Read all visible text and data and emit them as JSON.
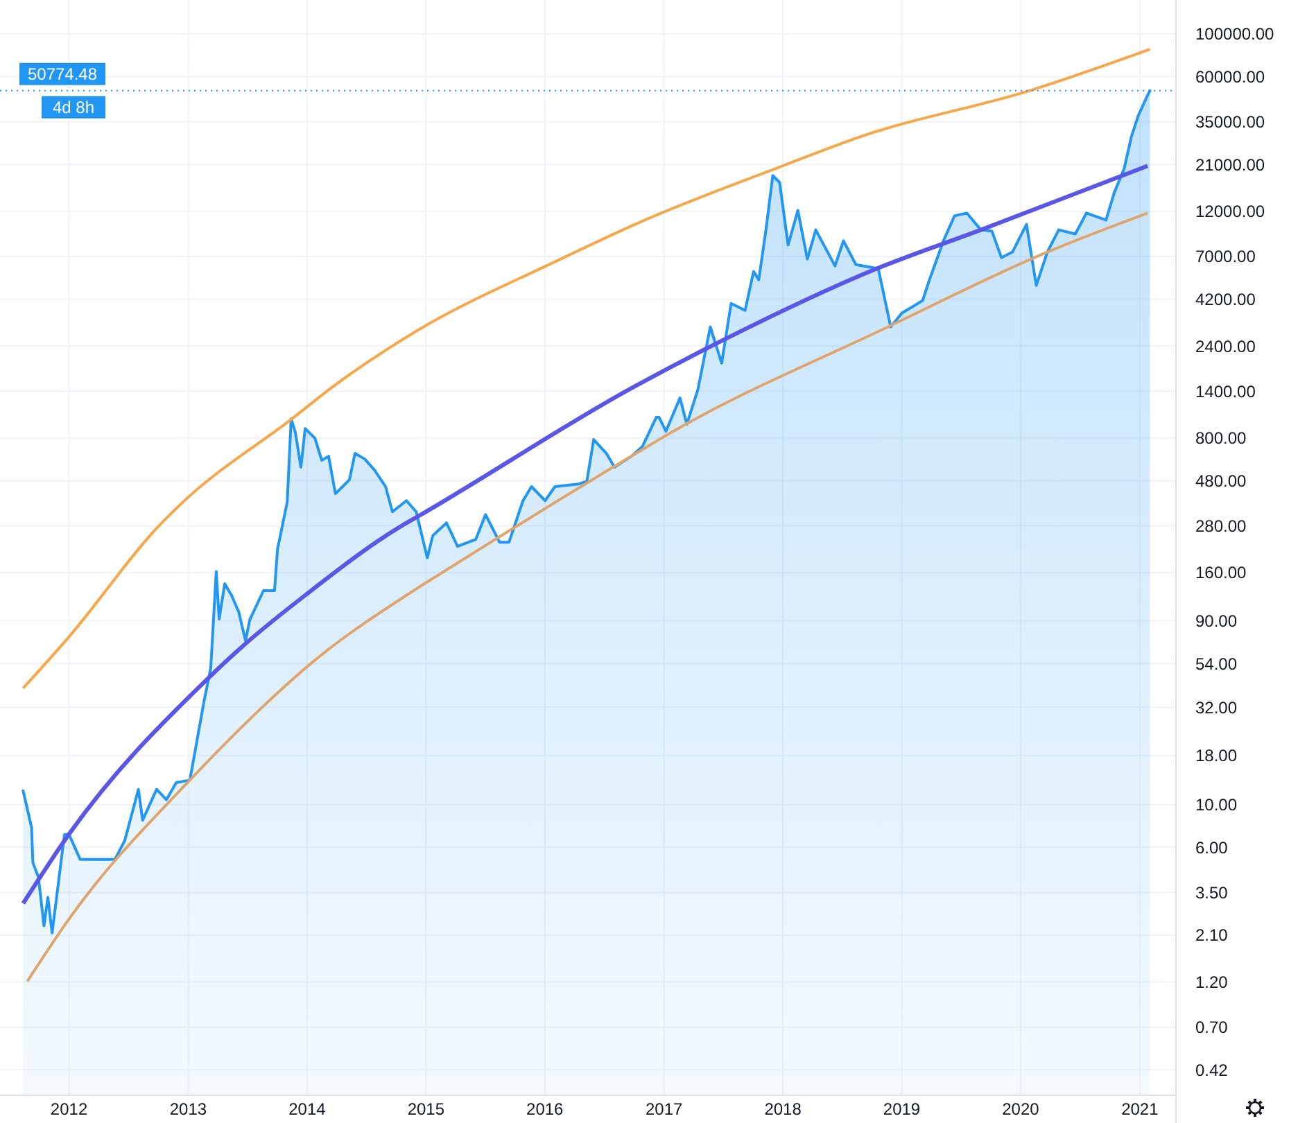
{
  "chart_data": {
    "type": "line",
    "log": true,
    "grid": true,
    "xlim": [
      "2011-06-03",
      "2021-04-22"
    ],
    "ylim": [
      0.31,
      150000
    ],
    "xticks": [
      "2012",
      "2013",
      "2014",
      "2015",
      "2016",
      "2017",
      "2018",
      "2019",
      "2020",
      "2021"
    ],
    "yticks": [
      {
        "value": 100000,
        "label": "100000.00"
      },
      {
        "value": 60000,
        "label": "60000.00"
      },
      {
        "value": 35000,
        "label": "35000.00"
      },
      {
        "value": 21000,
        "label": "21000.00"
      },
      {
        "value": 12000,
        "label": "12000.00"
      },
      {
        "value": 7000,
        "label": "7000.00"
      },
      {
        "value": 4200,
        "label": "4200.00"
      },
      {
        "value": 2400,
        "label": "2400.00"
      },
      {
        "value": 1400,
        "label": "1400.00"
      },
      {
        "value": 800,
        "label": "800.00"
      },
      {
        "value": 480,
        "label": "480.00"
      },
      {
        "value": 280,
        "label": "280.00"
      },
      {
        "value": 160,
        "label": "160.00"
      },
      {
        "value": 90,
        "label": "90.00"
      },
      {
        "value": 54,
        "label": "54.00"
      },
      {
        "value": 32,
        "label": "32.00"
      },
      {
        "value": 18,
        "label": "18.00"
      },
      {
        "value": 10,
        "label": "10.00"
      },
      {
        "value": 6,
        "label": "6.00"
      },
      {
        "value": 3.5,
        "label": "3.50"
      },
      {
        "value": 2.1,
        "label": "2.10"
      },
      {
        "value": 1.2,
        "label": "1.20"
      },
      {
        "value": 0.7,
        "label": "0.70"
      },
      {
        "value": 0.42,
        "label": "0.42"
      }
    ],
    "series": [
      {
        "type": "area",
        "color": "#2196f3",
        "x": [
          "2011-08-13",
          "2011-09-08",
          "2011-09-12",
          "2011-09-29",
          "2011-10-16",
          "2011-10-28",
          "2011-11-10",
          "2011-12-18",
          "2012-01-01",
          "2012-02-04",
          "2012-03-13",
          "2012-05-21",
          "2012-06-20",
          "2012-08-01",
          "2012-08-14",
          "2012-09-26",
          "2012-10-26",
          "2012-11-25",
          "2013-01-06",
          "2013-02-18",
          "2013-03-11",
          "2013-03-28",
          "2013-04-06",
          "2013-04-23",
          "2013-05-14",
          "2013-06-05",
          "2013-06-26",
          "2013-07-09",
          "2013-08-20",
          "2013-09-23",
          "2013-10-02",
          "2013-11-01",
          "2013-11-13",
          "2013-11-26",
          "2013-12-13",
          "2013-12-26",
          "2014-01-25",
          "2014-02-15",
          "2014-03-08",
          "2014-03-29",
          "2014-04-20",
          "2014-05-11",
          "2014-05-28",
          "2014-06-27",
          "2014-07-27",
          "2014-08-30",
          "2014-09-20",
          "2014-11-02",
          "2014-12-02",
          "2015-01-05",
          "2015-01-22",
          "2015-03-05",
          "2015-04-08",
          "2015-06-03",
          "2015-07-03",
          "2015-08-15",
          "2015-09-13",
          "2015-10-26",
          "2015-11-21",
          "2016-01-02",
          "2016-02-01",
          "2016-04-13",
          "2016-05-09",
          "2016-05-30",
          "2016-07-08",
          "2016-08-02",
          "2016-09-23",
          "2016-10-27",
          "2016-12-08",
          "2016-12-17",
          "2017-01-07",
          "2017-02-19",
          "2017-03-12",
          "2017-04-15",
          "2017-05-23",
          "2017-06-27",
          "2017-07-26",
          "2017-09-07",
          "2017-10-03",
          "2017-10-19",
          "2017-11-10",
          "2017-12-01",
          "2017-12-22",
          "2018-01-17",
          "2018-02-16",
          "2018-03-17",
          "2018-04-12",
          "2018-06-10",
          "2018-07-06",
          "2018-08-13",
          "2018-10-21",
          "2018-11-28",
          "2019-01-01",
          "2019-03-06",
          "2019-03-27",
          "2019-05-09",
          "2019-06-12",
          "2019-07-20",
          "2019-09-01",
          "2019-10-05",
          "2019-11-03",
          "2019-12-07",
          "2020-01-19",
          "2020-02-18",
          "2020-03-23",
          "2020-04-27",
          "2020-06-17",
          "2020-07-21",
          "2020-09-19",
          "2020-10-15",
          "2020-11-14",
          "2020-12-06",
          "2020-12-27",
          "2021-01-21",
          "2021-02-01"
        ],
        "values": [
          11.8,
          7.6,
          5.0,
          4.2,
          2.35,
          3.3,
          2.16,
          7.0,
          7.0,
          5.2,
          5.2,
          5.2,
          6.5,
          12,
          8.3,
          12,
          10.6,
          13,
          13.4,
          34,
          51,
          162,
          92,
          140,
          122,
          100,
          71,
          91,
          129,
          129,
          211,
          372,
          1007,
          853,
          564,
          895,
          798,
          612,
          643,
          411,
          447,
          485,
          665,
          622,
          545,
          447,
          331,
          378,
          331,
          191,
          249,
          290,
          219,
          238,
          320,
          230,
          230,
          378,
          447,
          378,
          447,
          461,
          476,
          785,
          665,
          564,
          643,
          723,
          1023,
          1023,
          867,
          1291,
          942,
          1426,
          3013,
          1956,
          3990,
          3672,
          5848,
          5297,
          9616,
          18400,
          16940,
          8020,
          12140,
          6790,
          9616,
          6250,
          8430,
          6350,
          6050,
          3013,
          3556,
          4130,
          5297,
          8430,
          11370,
          11750,
          9616,
          9460,
          6900,
          7380,
          10280,
          4950,
          7380,
          9616,
          9160,
          11750,
          10810,
          15070,
          20000,
          29240,
          37580,
          46560,
          50774.48
        ]
      },
      {
        "color": "#5b57e6",
        "x": [
          "2011-08-13",
          "2012-01-01",
          "2013-02-22",
          "2013-06-26",
          "2013-12-26",
          "2014-10-20",
          "2014-12-10",
          "2016-10-01",
          "2017-06-27",
          "2018-10-16",
          "2019-09-01",
          "2021-01-25"
        ],
        "values": [
          3.07,
          7.03,
          43.7,
          68.4,
          122,
          281,
          315,
          1475,
          2553,
          6050,
          9616,
          20650
        ]
      },
      {
        "color": "#f5a74a",
        "x": [
          "2011-08-13",
          "2012-01-01",
          "2012-10-04",
          "2012-12-07",
          "2013-11-21",
          "2014-03-21",
          "2014-12-02",
          "2016-02-01",
          "2016-10-14",
          "2017-12-31",
          "2018-08-26",
          "2020-02-09",
          "2021-02-01"
        ],
        "values": [
          40.2,
          74.3,
          281,
          360,
          1023,
          1475,
          2864,
          6570,
          10450,
          20650,
          29240,
          51500,
          83300
        ]
      },
      {
        "color": "#e0a56c",
        "x": [
          "2011-08-26",
          "2012-01-01",
          "2013-01-06",
          "2014-02-19",
          "2014-11-02",
          "2015-02-25",
          "2016-10-14",
          "2017-01-07",
          "2018-11-19",
          "2020-03-03",
          "2021-01-25"
        ],
        "values": [
          1.21,
          2.55,
          13.4,
          60.8,
          122,
          162,
          676,
          824,
          3013,
          7140,
          11750
        ]
      }
    ],
    "ref_lines": [
      {
        "axis": "y",
        "value": 50774.48,
        "label": "50774.48",
        "color": "#2196f3",
        "line_style": "dotted"
      }
    ],
    "annotations": [
      "4d 8h"
    ]
  }
}
